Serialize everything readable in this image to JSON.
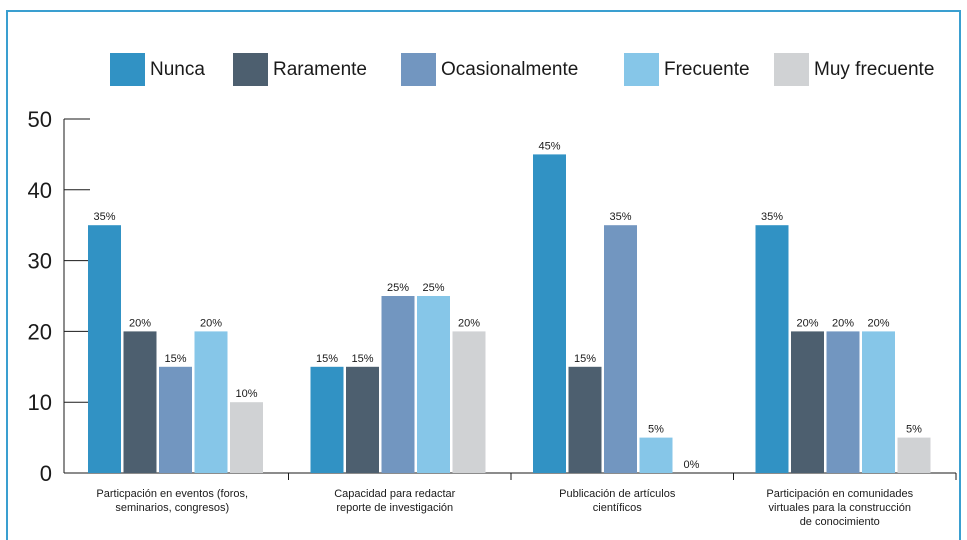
{
  "chart_data": {
    "type": "bar",
    "categories": [
      [
        "Particpación en eventos (foros,",
        "seminarios, congresos)"
      ],
      [
        "Capacidad para redactar",
        "reporte de investigación"
      ],
      [
        "Publicación de artículos",
        "científicos"
      ],
      [
        "Participación en comunidades",
        "virtuales para la construcción",
        "de conocimiento"
      ]
    ],
    "series": [
      {
        "name": "Nunca",
        "color": "#3192c4",
        "values": [
          35,
          15,
          45,
          35
        ]
      },
      {
        "name": "Raramente",
        "color": "#4d5f6f",
        "values": [
          20,
          15,
          15,
          20
        ]
      },
      {
        "name": "Ocasionalmente",
        "color": "#7296c0",
        "values": [
          15,
          25,
          35,
          20
        ]
      },
      {
        "name": "Frecuente",
        "color": "#86c6e8",
        "values": [
          20,
          25,
          5,
          20
        ]
      },
      {
        "name": "Muy frecuente",
        "color": "#d0d2d4",
        "values": [
          10,
          20,
          0,
          5
        ]
      }
    ],
    "data_labels": [
      [
        "35%",
        "15%",
        "45%",
        "35%"
      ],
      [
        "20%",
        "15%",
        "15%",
        "20%"
      ],
      [
        "15%",
        "25%",
        "35%",
        "20%"
      ],
      [
        "20%",
        "25%",
        "5%",
        "20%"
      ],
      [
        "10%",
        "20%",
        "0%",
        "5%"
      ]
    ],
    "yticks": [
      "0",
      "10",
      "20",
      "30",
      "40",
      "50"
    ],
    "ylim": [
      0,
      50
    ],
    "legend_position": "top",
    "grid": false
  }
}
